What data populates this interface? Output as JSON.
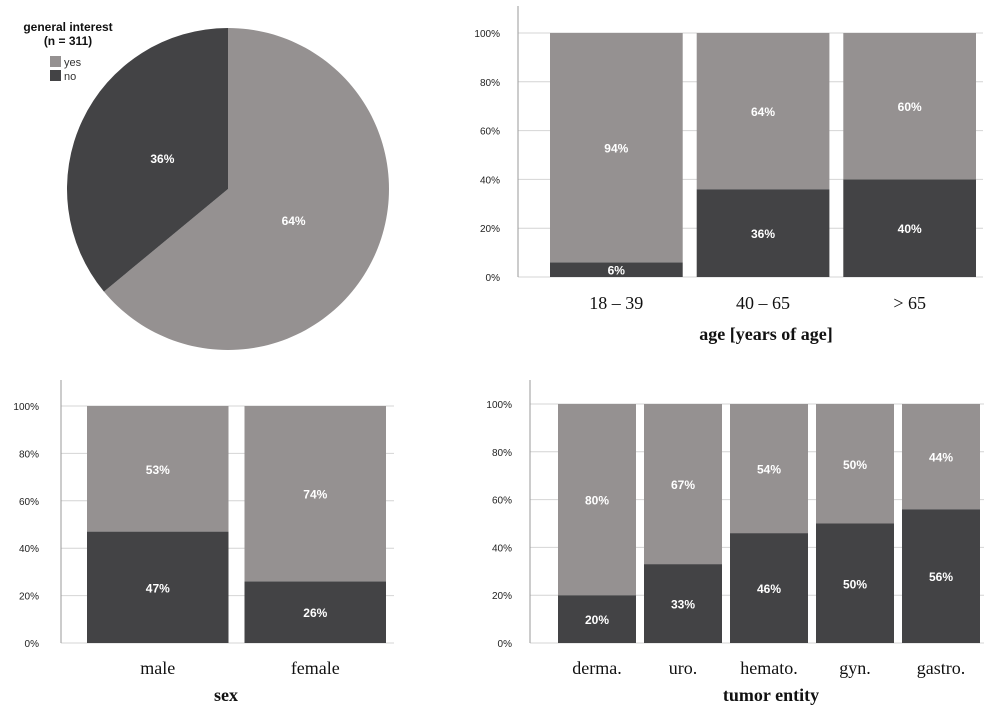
{
  "colors": {
    "yes": "#959191",
    "no": "#434345",
    "grid": "#d4d4d4",
    "axis": "#9a9a9a"
  },
  "chart_data": [
    {
      "type": "pie",
      "title": "general interest",
      "subtitle": "(n = 311)",
      "legend": {
        "placement": "top-left",
        "entries": [
          "yes",
          "no"
        ]
      },
      "slices": [
        {
          "name": "yes",
          "value": 64,
          "label": "64%"
        },
        {
          "name": "no",
          "value": 36,
          "label": "36%"
        }
      ]
    },
    {
      "type": "bar",
      "stacked": true,
      "xlabel": "age [years of age]",
      "categories": [
        "18 – 39",
        "40 – 65",
        "> 65"
      ],
      "series": [
        {
          "name": "no",
          "values": [
            6,
            36,
            40
          ],
          "labels": [
            "6%",
            "36%",
            "40%"
          ]
        },
        {
          "name": "yes",
          "values": [
            94,
            64,
            60
          ],
          "labels": [
            "94%",
            "64%",
            "60%"
          ]
        }
      ],
      "yticks": [
        "0%",
        "20%",
        "40%",
        "60%",
        "80%",
        "100%"
      ],
      "ylim": [
        0,
        100
      ]
    },
    {
      "type": "bar",
      "stacked": true,
      "xlabel": "sex",
      "categories": [
        "male",
        "female"
      ],
      "series": [
        {
          "name": "no",
          "values": [
            47,
            26
          ],
          "labels": [
            "47%",
            "26%"
          ]
        },
        {
          "name": "yes",
          "values": [
            53,
            74
          ],
          "labels": [
            "53%",
            "74%"
          ]
        }
      ],
      "yticks": [
        "0%",
        "20%",
        "40%",
        "60%",
        "80%",
        "100%"
      ],
      "ylim": [
        0,
        100
      ]
    },
    {
      "type": "bar",
      "stacked": true,
      "xlabel": "tumor entity",
      "categories": [
        "derma.",
        "uro.",
        "hemato.",
        "gyn.",
        "gastro."
      ],
      "series": [
        {
          "name": "no",
          "values": [
            20,
            33,
            46,
            50,
            56
          ],
          "labels": [
            "20%",
            "33%",
            "46%",
            "50%",
            "56%"
          ]
        },
        {
          "name": "yes",
          "values": [
            80,
            67,
            54,
            50,
            44
          ],
          "labels": [
            "80%",
            "67%",
            "54%",
            "50%",
            "44%"
          ]
        }
      ],
      "yticks": [
        "0%",
        "20%",
        "40%",
        "60%",
        "80%",
        "100%"
      ],
      "ylim": [
        0,
        100
      ]
    }
  ]
}
